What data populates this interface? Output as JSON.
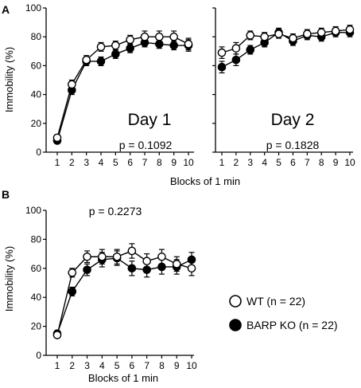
{
  "panels": [
    {
      "label": "A"
    },
    {
      "label": "B"
    }
  ],
  "legend": [
    {
      "label": "WT (n = 22)",
      "marker": "open-circle",
      "color": "#ffffff"
    },
    {
      "label": "BARP KO (n = 22)",
      "marker": "filled-circle",
      "color": "#000000"
    }
  ],
  "chart_data": [
    {
      "type": "line",
      "panel": "A",
      "annotation": "Day 1",
      "pvalue": "p = 0.1092",
      "ylabel": "Immobility (%)",
      "xlabel": "Blocks of 1 min",
      "ylim": [
        0,
        100
      ],
      "yticks": [
        0,
        20,
        40,
        60,
        80,
        100
      ],
      "categories": [
        1,
        2,
        3,
        4,
        5,
        6,
        7,
        8,
        9,
        10
      ],
      "series": [
        {
          "name": "WT (n = 22)",
          "marker": "open",
          "values": [
            10,
            47,
            64,
            73,
            74,
            78,
            80,
            80,
            80,
            75
          ],
          "errors": [
            2,
            3,
            3,
            3,
            3,
            3,
            4,
            4,
            4,
            4
          ]
        },
        {
          "name": "BARP KO (n = 22)",
          "marker": "filled",
          "values": [
            8,
            43,
            63,
            63,
            68,
            72,
            76,
            75,
            74,
            74
          ],
          "errors": [
            2,
            3,
            3,
            3,
            3,
            3,
            3,
            3,
            3,
            4
          ]
        }
      ]
    },
    {
      "type": "line",
      "panel": "A",
      "annotation": "Day 2",
      "pvalue": "p = 0.1828",
      "ylim": [
        0,
        100
      ],
      "categories": [
        1,
        2,
        3,
        4,
        5,
        6,
        7,
        8,
        9,
        10
      ],
      "series": [
        {
          "name": "WT (n = 22)",
          "marker": "open",
          "values": [
            69,
            72,
            81,
            80,
            82,
            79,
            82,
            83,
            84,
            85
          ],
          "errors": [
            4,
            4,
            3,
            3,
            3,
            3,
            3,
            3,
            3,
            3
          ]
        },
        {
          "name": "BARP KO (n = 22)",
          "marker": "filled",
          "values": [
            59,
            64,
            71,
            76,
            83,
            77,
            81,
            80,
            83,
            83
          ],
          "errors": [
            4,
            4,
            3,
            3,
            3,
            3,
            3,
            3,
            3,
            3
          ]
        }
      ]
    },
    {
      "type": "line",
      "panel": "B",
      "pvalue": "p = 0.2273",
      "ylabel": "Immobility (%)",
      "xlabel": "Blocks of 1 min",
      "ylim": [
        0,
        100
      ],
      "yticks": [
        0,
        20,
        40,
        60,
        80,
        100
      ],
      "categories": [
        1,
        2,
        3,
        4,
        5,
        6,
        7,
        8,
        9,
        10
      ],
      "series": [
        {
          "name": "WT (n = 22)",
          "marker": "open",
          "values": [
            14,
            57,
            68,
            68,
            68,
            72,
            65,
            68,
            63,
            60
          ],
          "errors": [
            2,
            3,
            4,
            5,
            5,
            5,
            5,
            5,
            5,
            5
          ]
        },
        {
          "name": "BARP KO (n = 22)",
          "marker": "filled",
          "values": [
            15,
            44,
            59,
            66,
            67,
            60,
            59,
            61,
            61,
            66
          ],
          "errors": [
            2,
            3,
            4,
            5,
            5,
            5,
            5,
            5,
            5,
            5
          ]
        }
      ]
    }
  ]
}
